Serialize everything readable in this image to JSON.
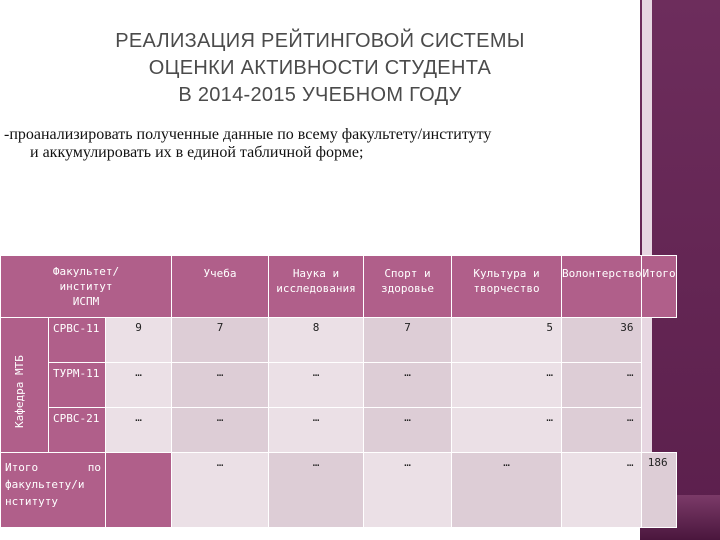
{
  "title": {
    "line1": "РЕАЛИЗАЦИЯ РЕЙТИНГОВОЙ СИСТЕМЫ",
    "line2": "ОЦЕНКИ АКТИВНОСТИ СТУДЕНТА",
    "line3": "В 2014-2015 УЧЕБНОМ ГОДУ"
  },
  "intro": {
    "line1": "-проанализировать полученные данные по всему факультету/институту",
    "line2": "и аккумулировать их в единой табличной форме;"
  },
  "table": {
    "faculty_header": {
      "line1": "Факультет/",
      "line2": "институт",
      "line3": "ИСПМ"
    },
    "columns": [
      "Учеба",
      "Наука и исследования",
      "Спорт и здоровье",
      "Культура и творчество",
      "Волонтерство",
      "Итого"
    ],
    "department_label": "Кафедра МТБ",
    "rows": [
      {
        "code": "СРВС-11",
        "values": [
          "9",
          "7",
          "8",
          "7",
          "5",
          "36"
        ]
      },
      {
        "code": "ТУРМ-11",
        "values": [
          "…",
          "…",
          "…",
          "…",
          "…",
          "…"
        ]
      },
      {
        "code": "СРВС-21",
        "values": [
          "…",
          "…",
          "…",
          "…",
          "…",
          "…"
        ]
      }
    ],
    "total_row": {
      "label_w1": "Итого",
      "label_w2": "по",
      "label_rest1": "факультету/и",
      "label_rest2": "нституту",
      "values": [
        "…",
        "…",
        "…",
        "…",
        "…",
        "186"
      ]
    }
  },
  "colors": {
    "header_bg": "#b05f8a",
    "band_bg": "#5b1f4c",
    "cell_light": "#ebe0e6",
    "cell_mid": "#ddcdd6"
  }
}
